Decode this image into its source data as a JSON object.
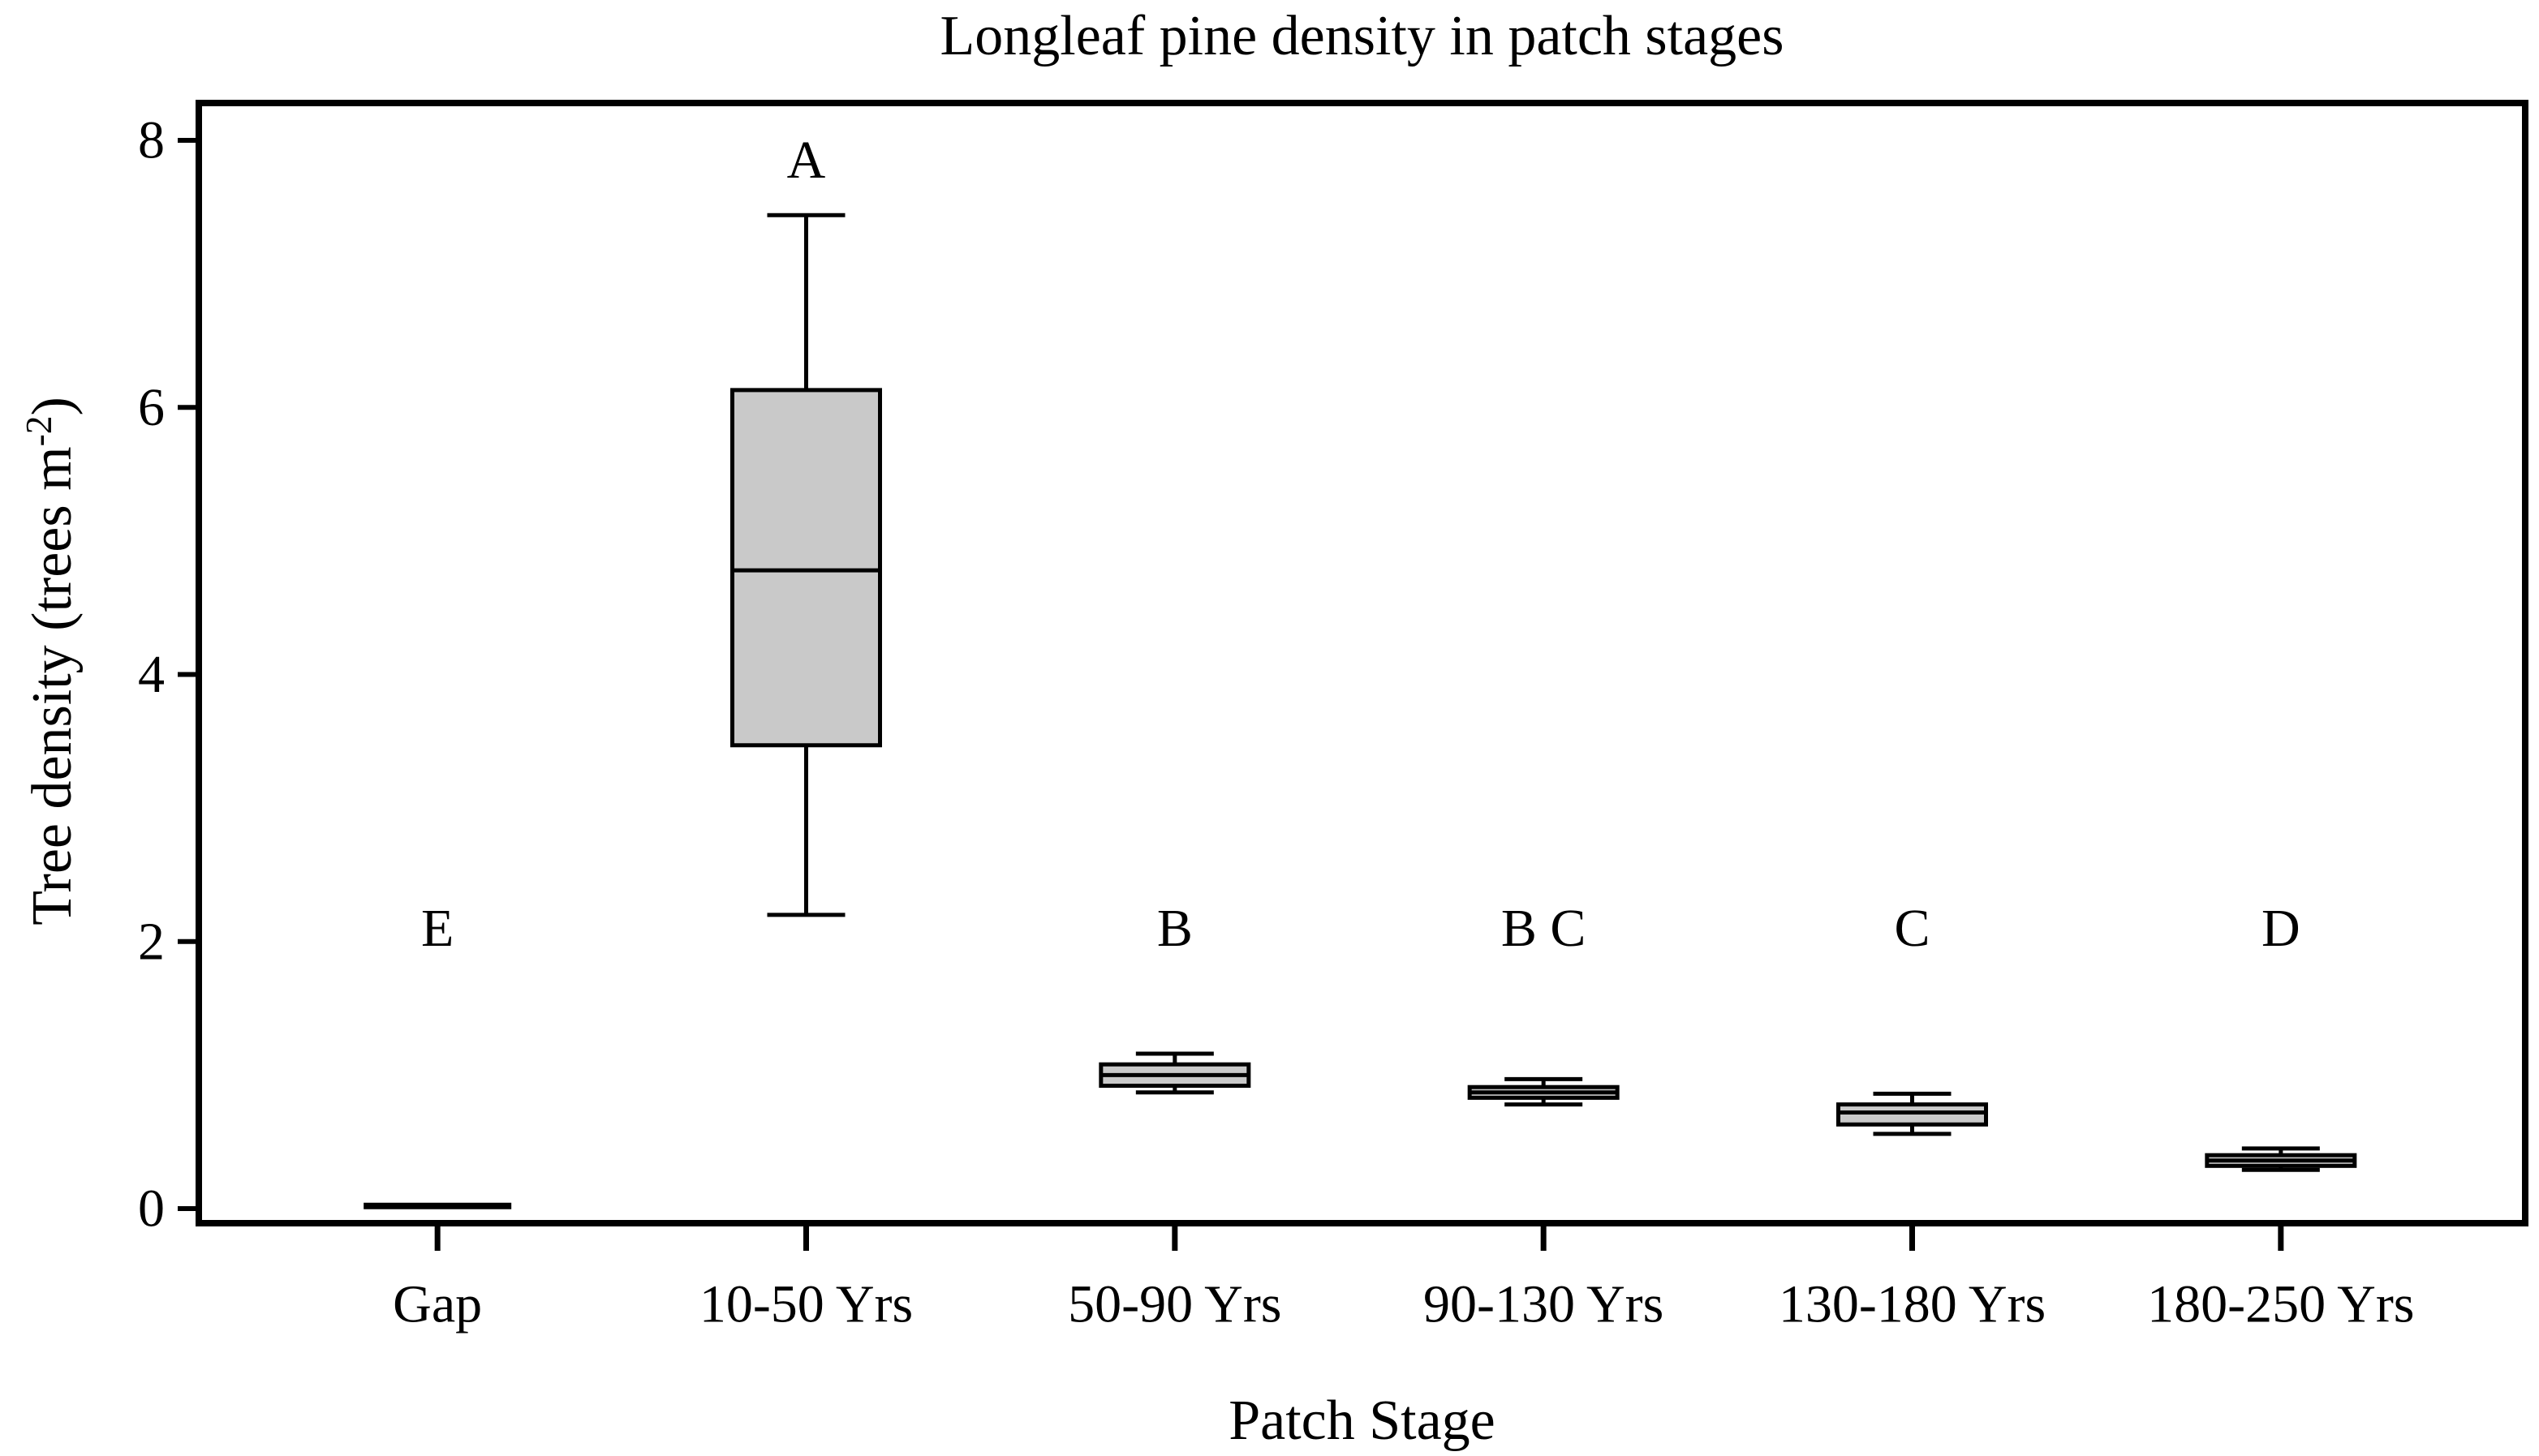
{
  "figure_title": "Longleaf pine density in patch stages",
  "chart_data": {
    "type": "box",
    "title": "Longleaf pine density in patch stages",
    "xlabel": "Patch Stage",
    "ylabel": {
      "prefix": "Tree density (trees m",
      "superscript": "-2",
      "suffix": ")"
    },
    "ylim": [
      0,
      8
    ],
    "yticks": [
      0,
      2,
      4,
      6,
      8
    ],
    "grid": false,
    "legend_position": "none",
    "categories": [
      "Gap",
      "10-50 Yrs",
      "50-90 Yrs",
      "90-130 Yrs",
      "130-180 Yrs",
      "180-250 Yrs"
    ],
    "boxes": [
      {
        "category": "Gap",
        "min": 0.02,
        "q1": 0.02,
        "median": 0.02,
        "q3": 0.02,
        "max": 0.02,
        "significance": "E",
        "significance_y": 2.1
      },
      {
        "category": "10-50 Yrs",
        "min": 2.2,
        "q1": 3.47,
        "median": 4.78,
        "q3": 6.13,
        "max": 7.44,
        "significance": "A",
        "significance_y": 7.85
      },
      {
        "category": "50-90 Yrs",
        "min": 0.87,
        "q1": 0.92,
        "median": 1.0,
        "q3": 1.08,
        "max": 1.16,
        "significance": "B",
        "significance_y": 2.1
      },
      {
        "category": "90-130 Yrs",
        "min": 0.78,
        "q1": 0.83,
        "median": 0.87,
        "q3": 0.91,
        "max": 0.97,
        "significance": "B C",
        "significance_y": 2.1
      },
      {
        "category": "130-180 Yrs",
        "min": 0.56,
        "q1": 0.63,
        "median": 0.72,
        "q3": 0.78,
        "max": 0.86,
        "significance": "C",
        "significance_y": 2.1
      },
      {
        "category": "180-250 Yrs",
        "min": 0.29,
        "q1": 0.32,
        "median": 0.36,
        "q3": 0.4,
        "max": 0.45,
        "significance": "D",
        "significance_y": 2.1
      }
    ],
    "colors": {
      "box_fill": "#c9c9c9",
      "line": "#000000",
      "text": "#000000",
      "background": "#ffffff"
    }
  }
}
